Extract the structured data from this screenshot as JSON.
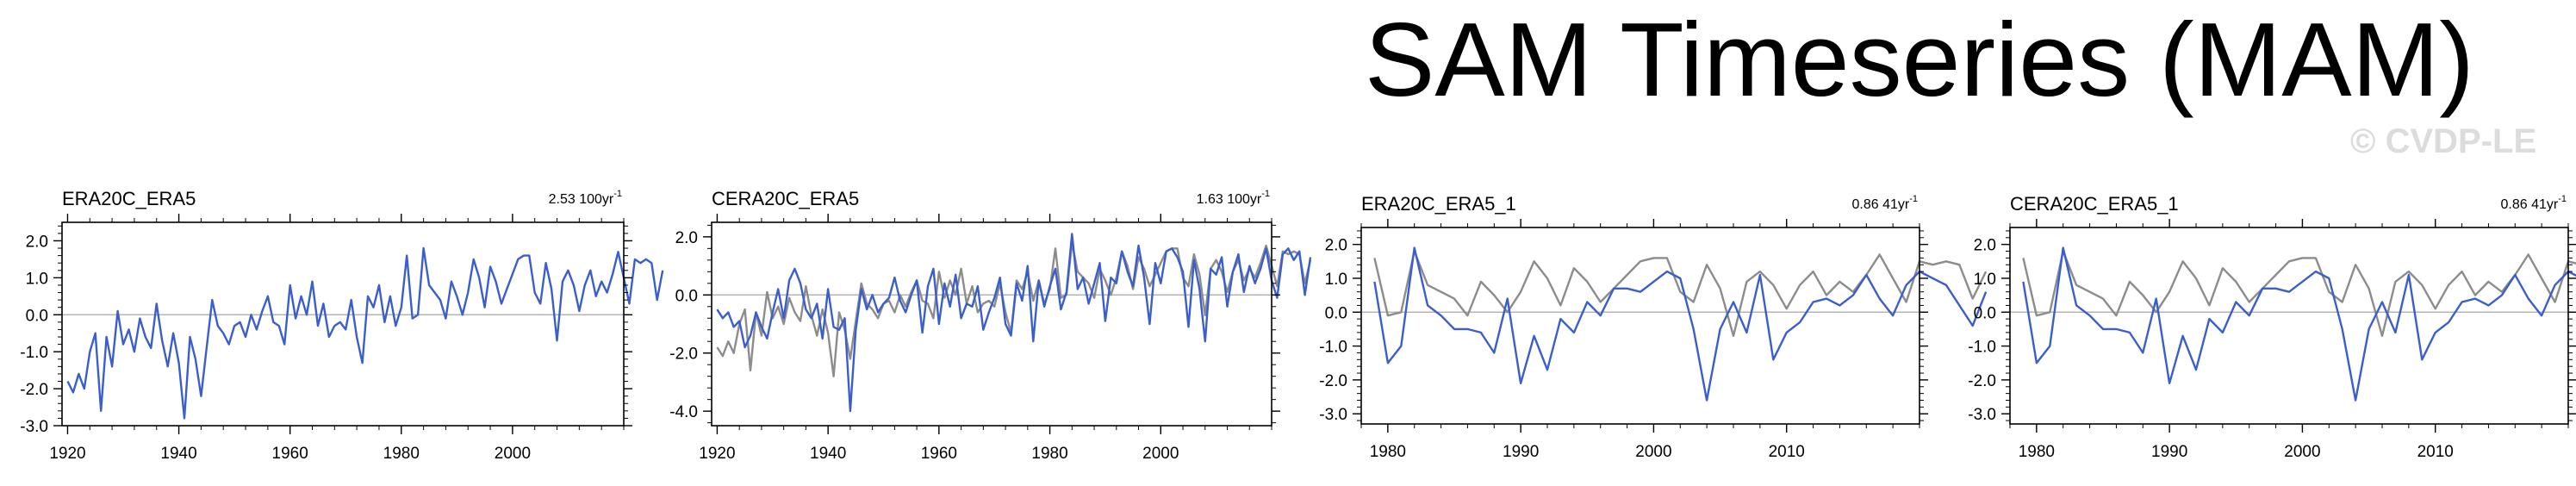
{
  "page": {
    "title": "SAM Timeseries (MAM)",
    "watermark": "© CVDP-LE"
  },
  "colors": {
    "primary": "#3a5fcd",
    "reference": "#8c8c8c",
    "axis": "#000000"
  },
  "chart_data": [
    {
      "type": "line",
      "title": "ERA20C_ERA5",
      "trend_value": "2.53",
      "trend_unit": "100yr",
      "trend_exponent": "-1",
      "xlim": [
        1919,
        2020
      ],
      "ylim": [
        -3.0,
        2.5
      ],
      "yticks": [
        2.0,
        1.0,
        0.0,
        -1.0,
        -2.0,
        -3.0
      ],
      "ytick_labels": [
        "2.0",
        "1.0",
        "0.0",
        "-1.0",
        "-2.0",
        "-3.0"
      ],
      "xticks": [
        1920,
        1940,
        1960,
        1980,
        2000
      ],
      "xtick_labels": [
        "1920",
        "1940",
        "1960",
        "1980",
        "2000"
      ],
      "series": [
        {
          "name": "ERA20C",
          "color": "#3a5fcd",
          "x_start": 1920,
          "values": [
            -1.8,
            -2.1,
            -1.6,
            -2.0,
            -1.0,
            -0.5,
            -2.6,
            -0.6,
            -1.4,
            0.1,
            -0.8,
            -0.4,
            -1.0,
            -0.1,
            -0.6,
            -0.9,
            0.3,
            -0.7,
            -1.4,
            -0.5,
            -1.3,
            -2.8,
            -0.6,
            -1.2,
            -2.2,
            -0.9,
            0.4,
            -0.3,
            -0.5,
            -0.8,
            -0.3,
            -0.2,
            -0.6,
            0.0,
            -0.4,
            0.1,
            0.5,
            -0.2,
            -0.3,
            -0.8,
            0.8,
            -0.1,
            0.5,
            0.0,
            0.9,
            -0.3,
            0.3,
            -0.6,
            -0.3,
            -0.2,
            -0.4,
            0.4,
            -0.6,
            -1.3,
            0.5,
            0.2,
            0.8,
            -0.2,
            0.5,
            -0.3,
            0.2,
            1.6,
            -0.1,
            0.0,
            1.8,
            0.8,
            0.6,
            0.4,
            -0.1,
            0.9,
            0.5,
            0.0,
            0.6,
            1.5,
            1.0,
            0.2,
            1.3,
            0.9,
            0.3,
            0.7,
            1.1,
            1.5,
            1.6,
            1.6,
            0.6,
            0.3,
            1.4,
            0.7,
            -0.7,
            0.9,
            1.2,
            0.8,
            0.1,
            0.8,
            1.2,
            0.5,
            0.9,
            0.6,
            1.1,
            1.7,
            1.0,
            0.3,
            1.5,
            1.4,
            1.5,
            1.4,
            0.4,
            1.2
          ]
        }
      ]
    },
    {
      "type": "line",
      "title": "CERA20C_ERA5",
      "trend_value": "1.63",
      "trend_unit": "100yr",
      "trend_exponent": "-1",
      "xlim": [
        1919,
        2020
      ],
      "ylim": [
        -4.5,
        2.5
      ],
      "yticks": [
        2.0,
        0.0,
        -2.0,
        -4.0
      ],
      "ytick_labels": [
        "2.0",
        "0.0",
        "-2.0",
        "-4.0"
      ],
      "xticks": [
        1920,
        1940,
        1960,
        1980,
        2000
      ],
      "xtick_labels": [
        "1920",
        "1940",
        "1960",
        "1980",
        "2000"
      ],
      "series": [
        {
          "name": "ERA20C",
          "color": "#8c8c8c",
          "x_start": 1920,
          "values": [
            -1.8,
            -2.1,
            -1.6,
            -2.0,
            -1.0,
            -0.5,
            -2.6,
            -0.6,
            -1.4,
            0.1,
            -0.8,
            -0.4,
            -1.0,
            -0.1,
            -0.6,
            -0.9,
            0.3,
            -0.7,
            -1.4,
            -0.5,
            -1.3,
            -2.8,
            -0.6,
            -1.2,
            -2.2,
            -0.9,
            0.4,
            -0.3,
            -0.5,
            -0.8,
            -0.3,
            -0.2,
            -0.6,
            0.0,
            -0.4,
            0.1,
            0.5,
            -0.2,
            -0.3,
            -0.8,
            0.8,
            -0.1,
            0.5,
            0.0,
            0.9,
            -0.3,
            0.3,
            -0.6,
            -0.3,
            -0.2,
            -0.4,
            0.4,
            -0.6,
            -1.3,
            0.5,
            0.2,
            0.8,
            -0.2,
            0.5,
            -0.3,
            0.2,
            1.6,
            -0.1,
            0.0,
            1.8,
            0.8,
            0.6,
            0.4,
            -0.1,
            0.9,
            0.5,
            0.0,
            0.6,
            1.5,
            1.0,
            0.2,
            1.3,
            0.9,
            0.3,
            0.7,
            1.1,
            1.5,
            1.6,
            1.6,
            0.6,
            0.3,
            1.4,
            0.7,
            -0.7,
            0.9,
            1.2,
            0.8,
            0.1,
            0.8,
            1.2,
            0.5,
            0.9,
            0.6,
            1.1,
            1.7,
            1.0,
            0.3,
            1.5,
            1.4,
            1.5,
            1.4,
            0.4,
            1.2
          ]
        },
        {
          "name": "CERA20C",
          "color": "#3a5fcd",
          "x_start": 1920,
          "values": [
            -0.5,
            -0.8,
            -0.6,
            -1.1,
            -0.9,
            -1.8,
            -1.4,
            -0.6,
            -1.1,
            -1.5,
            -0.6,
            0.2,
            -0.8,
            0.5,
            0.9,
            0.4,
            -0.5,
            -0.8,
            -0.3,
            -1.5,
            0.2,
            -1.1,
            -1.2,
            -0.8,
            -4.0,
            -1.2,
            0.2,
            -0.5,
            0.0,
            -0.6,
            -0.3,
            -0.1,
            0.6,
            -0.2,
            -0.6,
            0.0,
            0.5,
            -1.3,
            0.3,
            0.9,
            -1.0,
            0.4,
            -0.4,
            0.7,
            -0.8,
            -0.3,
            -0.4,
            0.3,
            -1.2,
            -0.6,
            -0.1,
            0.6,
            -1.0,
            -1.4,
            0.4,
            -0.2,
            1.0,
            -1.6,
            0.5,
            -0.4,
            0.3,
            0.9,
            -0.5,
            0.1,
            2.1,
            0.2,
            0.6,
            -0.3,
            0.4,
            1.1,
            -0.9,
            0.6,
            0.4,
            1.5,
            0.8,
            0.3,
            1.7,
            0.6,
            -1.0,
            1.1,
            0.4,
            1.5,
            1.6,
            1.3,
            0.8,
            -1.1,
            1.2,
            0.2,
            -1.6,
            0.9,
            0.7,
            1.3,
            -0.4,
            0.8,
            1.4,
            0.1,
            1.0,
            0.4,
            0.9,
            1.6,
            0.5,
            -0.1,
            1.4,
            1.6,
            1.2,
            1.5,
            0.0,
            1.3
          ]
        }
      ]
    },
    {
      "type": "line",
      "title": "ERA20C_ERA5_1",
      "trend_value": "0.86",
      "trend_unit": "41yr",
      "trend_exponent": "-1",
      "xlim": [
        1978,
        2020
      ],
      "ylim": [
        -3.3,
        2.5
      ],
      "yticks": [
        2.0,
        1.0,
        0.0,
        -1.0,
        -2.0,
        -3.0
      ],
      "ytick_labels": [
        "2.0",
        "1.0",
        "0.0",
        "-1.0",
        "-2.0",
        "-3.0"
      ],
      "xticks": [
        1980,
        1990,
        2000,
        2010
      ],
      "xtick_labels": [
        "1980",
        "1990",
        "2000",
        "2010"
      ],
      "series": [
        {
          "name": "ERA20C",
          "color": "#8c8c8c",
          "x_start": 1979,
          "values": [
            1.6,
            -0.1,
            0.0,
            1.8,
            0.8,
            0.6,
            0.4,
            -0.1,
            0.9,
            0.5,
            0.0,
            0.6,
            1.5,
            1.0,
            0.2,
            1.3,
            0.9,
            0.3,
            0.7,
            1.1,
            1.5,
            1.6,
            1.6,
            0.6,
            0.3,
            1.4,
            0.7,
            -0.7,
            0.9,
            1.2,
            0.8,
            0.1,
            0.8,
            1.2,
            0.5,
            0.9,
            0.6,
            1.1,
            1.7,
            1.0,
            0.3,
            1.5,
            1.4,
            1.5,
            1.4,
            0.4,
            1.2
          ]
        },
        {
          "name": "ERA5",
          "color": "#3a5fcd",
          "x_start": 1979,
          "values": [
            0.9,
            -1.5,
            -1.0,
            1.9,
            0.2,
            -0.1,
            -0.5,
            -0.5,
            -0.6,
            -1.2,
            0.4,
            -2.1,
            -0.7,
            -1.7,
            -0.2,
            -0.6,
            0.3,
            -0.1,
            0.7,
            0.7,
            0.6,
            0.9,
            1.2,
            1.0,
            -0.5,
            -2.6,
            -0.5,
            0.3,
            -0.6,
            1.1,
            -1.4,
            -0.6,
            -0.3,
            0.3,
            0.4,
            0.2,
            0.5,
            1.1,
            0.4,
            -0.1,
            0.8,
            1.2,
            1.0,
            0.8,
            0.2,
            -0.4,
            0.6
          ]
        }
      ]
    },
    {
      "type": "line",
      "title": "CERA20C_ERA5_1",
      "trend_value": "0.86",
      "trend_unit": "41yr",
      "trend_exponent": "-1",
      "xlim": [
        1978,
        2020
      ],
      "ylim": [
        -3.3,
        2.5
      ],
      "yticks": [
        2.0,
        1.0,
        0.0,
        -1.0,
        -2.0,
        -3.0
      ],
      "ytick_labels": [
        "2.0",
        "1.0",
        "0.0",
        "-1.0",
        "-2.0",
        "-3.0"
      ],
      "xticks": [
        1980,
        1990,
        2000,
        2010
      ],
      "xtick_labels": [
        "1980",
        "1990",
        "2000",
        "2010"
      ],
      "series": [
        {
          "name": "CERA20C",
          "color": "#8c8c8c",
          "x_start": 1979,
          "values": [
            1.6,
            -0.1,
            0.0,
            1.8,
            0.8,
            0.6,
            0.4,
            -0.1,
            0.9,
            0.5,
            0.0,
            0.6,
            1.5,
            1.0,
            0.2,
            1.3,
            0.9,
            0.3,
            0.7,
            1.1,
            1.5,
            1.6,
            1.6,
            0.6,
            0.3,
            1.4,
            0.7,
            -0.7,
            0.9,
            1.2,
            0.8,
            0.1,
            0.8,
            1.2,
            0.5,
            0.9,
            0.6,
            1.1,
            1.7,
            1.0,
            0.3,
            1.5,
            1.4,
            1.5,
            1.4,
            0.4,
            1.2
          ]
        },
        {
          "name": "ERA5",
          "color": "#3a5fcd",
          "x_start": 1979,
          "values": [
            0.9,
            -1.5,
            -1.0,
            1.9,
            0.2,
            -0.1,
            -0.5,
            -0.5,
            -0.6,
            -1.2,
            0.4,
            -2.1,
            -0.7,
            -1.7,
            -0.2,
            -0.6,
            0.3,
            -0.1,
            0.7,
            0.7,
            0.6,
            0.9,
            1.2,
            1.0,
            -0.5,
            -2.6,
            -0.5,
            0.3,
            -0.6,
            1.1,
            -1.4,
            -0.6,
            -0.3,
            0.3,
            0.4,
            0.2,
            0.5,
            1.1,
            0.4,
            -0.1,
            0.8,
            1.2,
            1.0,
            0.8,
            0.2,
            -0.4,
            0.6
          ]
        }
      ]
    }
  ]
}
